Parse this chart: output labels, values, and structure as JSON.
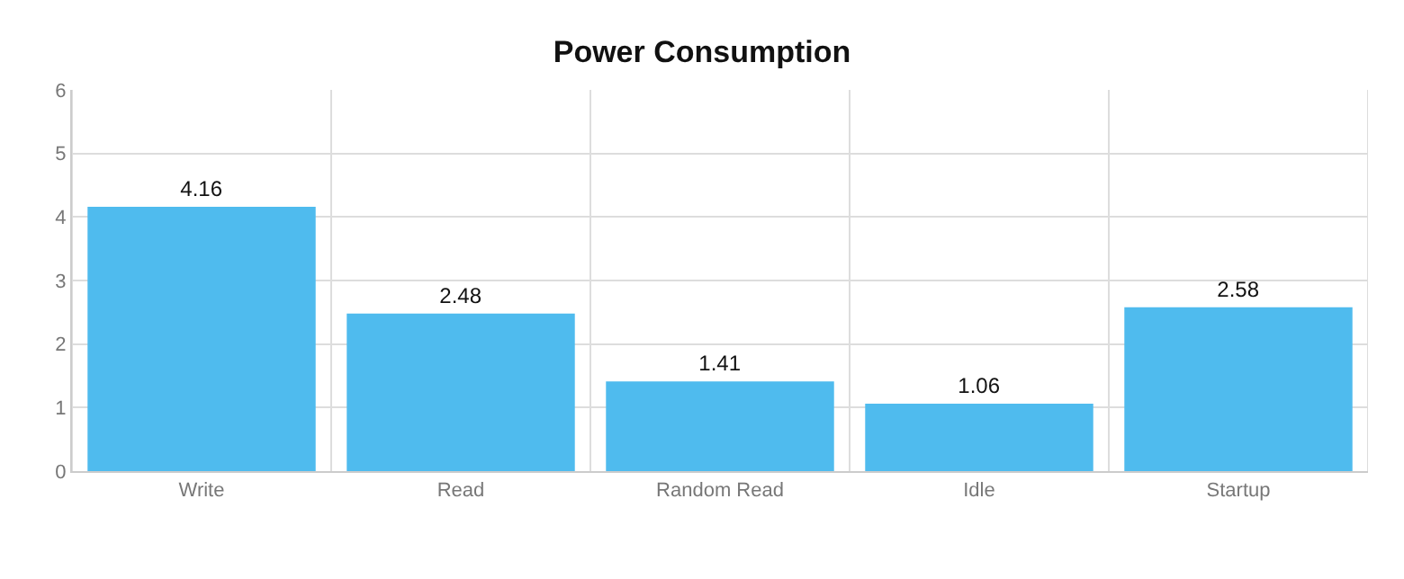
{
  "chart_data": {
    "type": "bar",
    "title": "Power Consumption",
    "categories": [
      "Write",
      "Read",
      "Random Read",
      "Idle",
      "Startup"
    ],
    "values": [
      4.16,
      2.48,
      1.41,
      1.06,
      2.58
    ],
    "color": "#4fbbee",
    "ylim": [
      0,
      6
    ],
    "yticks": [
      0,
      1,
      2,
      3,
      4,
      5,
      6
    ],
    "grid": true,
    "data_labels": true
  }
}
